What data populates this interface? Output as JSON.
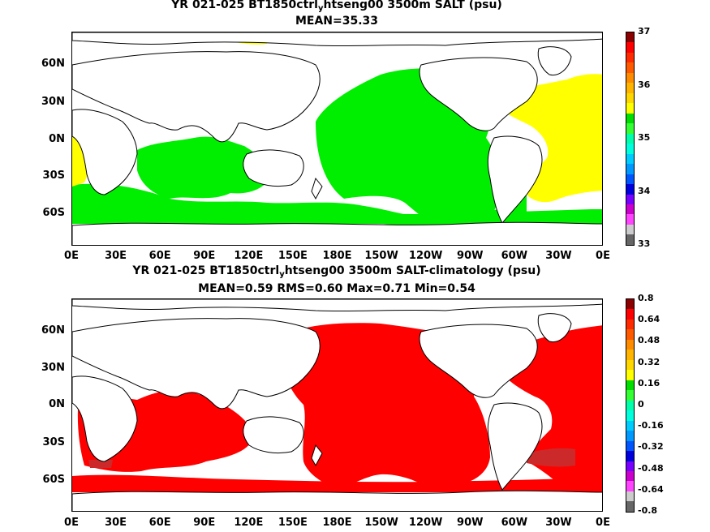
{
  "panel1": {
    "title_pre": "YR 021-025 BT1850ctrl",
    "title_sub": "y",
    "title_post": "htseng00 3500m SALT (psu)",
    "stats": "MEAN=35.33",
    "colorbar_labels": [
      "37",
      "36",
      "35",
      "34",
      "33"
    ],
    "colorbar_colors": [
      "#8b0000",
      "#ff0000",
      "#ff2a00",
      "#ff5a00",
      "#ff8c00",
      "#ffb400",
      "#ffd700",
      "#ffff00",
      "#00dd00",
      "#33ff33",
      "#00ffaa",
      "#00ffdd",
      "#00ccff",
      "#0099ff",
      "#0055ff",
      "#0000dd",
      "#7700ff",
      "#cc00cc",
      "#ff44ff",
      "#cccccc",
      "#666666"
    ]
  },
  "panel2": {
    "title_pre": "YR 021-025 BT1850ctrl",
    "title_sub": "y",
    "title_post": "htseng00 3500m SALT-climatology (psu)",
    "stats": "MEAN=0.59   RMS=0.60   Max=0.71   Min=0.54",
    "colorbar_labels": [
      "0.8",
      "0.64",
      "0.48",
      "0.32",
      "0.16",
      "0",
      "-0.16",
      "-0.32",
      "-0.48",
      "-0.64",
      "-0.8"
    ],
    "colorbar_colors": [
      "#8b0000",
      "#ff0000",
      "#ff2a00",
      "#ff5a00",
      "#ff8c00",
      "#ffb400",
      "#ffd700",
      "#ffff00",
      "#00dd00",
      "#33ff33",
      "#00ffaa",
      "#00ffdd",
      "#00ccff",
      "#0099ff",
      "#0055ff",
      "#0000dd",
      "#7700ff",
      "#cc00cc",
      "#ff44ff",
      "#cccccc",
      "#666666"
    ]
  },
  "axes": {
    "lat_labels": [
      "60N",
      "30N",
      "0N",
      "30S",
      "60S"
    ],
    "lon_labels": [
      "0E",
      "30E",
      "60E",
      "90E",
      "120E",
      "150E",
      "180E",
      "150W",
      "120W",
      "90W",
      "60W",
      "30W",
      "0E"
    ]
  },
  "colors": {
    "panel1_ocean": "#00ee00",
    "panel1_atlantic": "#ffff00",
    "panel2_ocean": "#ff0000",
    "panel2_darkred": "#cc2a2a",
    "land": "#ffffff",
    "coast": "#000000"
  }
}
